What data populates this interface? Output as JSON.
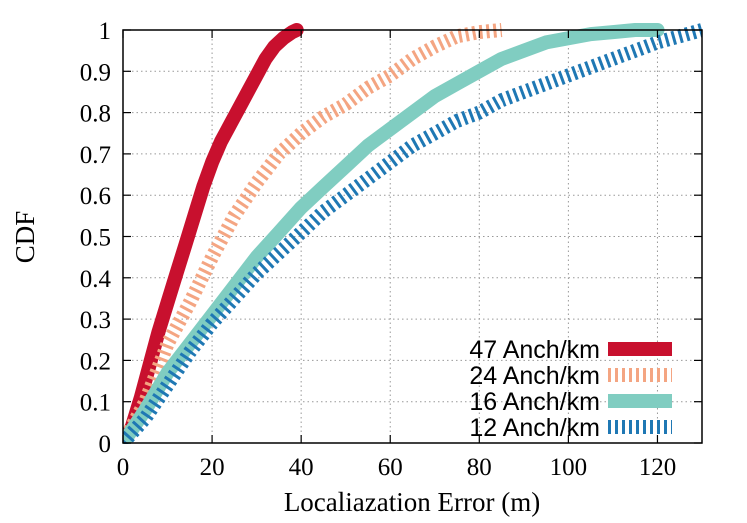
{
  "chart_data": {
    "type": "line",
    "title": "",
    "xlabel": "Localiazation Error (m)",
    "ylabel": "CDF",
    "xlim": [
      0,
      130
    ],
    "ylim": [
      0,
      1
    ],
    "xticks": [
      "0",
      "20",
      "40",
      "60",
      "80",
      "100",
      "120"
    ],
    "yticks": [
      "0",
      "0.1",
      "0.2",
      "0.3",
      "0.4",
      "0.5",
      "0.6",
      "0.7",
      "0.8",
      "0.9",
      "1"
    ],
    "grid": true,
    "legend_position": "bottom-right",
    "series": [
      {
        "name": "47 Anch/km",
        "color": "#c8102e",
        "style": "solid",
        "x": [
          0,
          2,
          4,
          6,
          8,
          10,
          12,
          14,
          16,
          18,
          20,
          22,
          24,
          26,
          28,
          30,
          32,
          34,
          36,
          38,
          39
        ],
        "y": [
          0,
          0.04,
          0.11,
          0.19,
          0.27,
          0.34,
          0.41,
          0.48,
          0.55,
          0.62,
          0.68,
          0.73,
          0.77,
          0.81,
          0.85,
          0.89,
          0.93,
          0.96,
          0.98,
          0.995,
          1.0
        ]
      },
      {
        "name": "24 Anch/km",
        "color": "#f4a582",
        "style": "dashed",
        "x": [
          0,
          5,
          10,
          15,
          20,
          25,
          30,
          35,
          40,
          45,
          50,
          55,
          60,
          65,
          70,
          75,
          80,
          85
        ],
        "y": [
          0,
          0.1,
          0.24,
          0.34,
          0.45,
          0.55,
          0.63,
          0.7,
          0.75,
          0.79,
          0.82,
          0.86,
          0.89,
          0.93,
          0.96,
          0.985,
          0.995,
          1.0
        ]
      },
      {
        "name": "16 Anch/km",
        "color": "#80cdc1",
        "style": "solid",
        "x": [
          0,
          5,
          10,
          15,
          20,
          25,
          30,
          35,
          40,
          45,
          50,
          55,
          60,
          65,
          70,
          75,
          80,
          85,
          90,
          95,
          100,
          105,
          110,
          115,
          120
        ],
        "y": [
          0,
          0.08,
          0.17,
          0.24,
          0.31,
          0.38,
          0.45,
          0.51,
          0.57,
          0.62,
          0.67,
          0.72,
          0.76,
          0.8,
          0.84,
          0.87,
          0.9,
          0.93,
          0.95,
          0.97,
          0.98,
          0.99,
          0.995,
          1.0,
          1.0
        ]
      },
      {
        "name": "12 Anch/km",
        "color": "#1f78b4",
        "style": "dashed",
        "x": [
          0,
          5,
          10,
          15,
          20,
          25,
          30,
          35,
          40,
          45,
          50,
          55,
          60,
          65,
          70,
          75,
          80,
          85,
          90,
          95,
          100,
          105,
          110,
          115,
          120,
          125,
          130
        ],
        "y": [
          0,
          0.06,
          0.14,
          0.22,
          0.29,
          0.35,
          0.41,
          0.46,
          0.51,
          0.56,
          0.6,
          0.64,
          0.68,
          0.72,
          0.75,
          0.78,
          0.8,
          0.83,
          0.85,
          0.87,
          0.89,
          0.91,
          0.93,
          0.95,
          0.97,
          0.985,
          1.0
        ]
      }
    ]
  }
}
